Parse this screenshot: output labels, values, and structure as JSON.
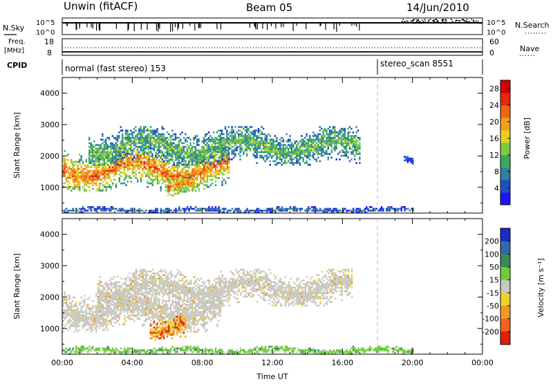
{
  "header": {
    "site": "Unwin (fitACF)",
    "beam": "Beam 05",
    "date": "14/Jun/2010"
  },
  "top_panels": {
    "nsky_label": "N.Sky",
    "nsearch_label": "N.Search",
    "nsky_ticks": [
      "10^5",
      "10^0"
    ],
    "nsearch_ticks": [
      "10^5",
      "10^0"
    ],
    "freq_label": "Freq.",
    "freq_unit": "[MHz]",
    "freq_ticks": [
      "18",
      "8"
    ],
    "nave_label": "Nave",
    "nave_ticks": [
      "60",
      "0"
    ],
    "cpid_label": "CPID",
    "cpid_segments": [
      {
        "text": "normal (fast stereo) 153",
        "start_hour": 0
      },
      {
        "text": "stereo_scan 8551",
        "start_hour": 18
      }
    ]
  },
  "chart_data": [
    {
      "type": "heatmap",
      "name": "power-panel",
      "xlabel": "",
      "ylabel": "Slant Range [km]",
      "xlim": [
        0,
        24
      ],
      "ylim": [
        180,
        4500
      ],
      "yticks": [
        1000,
        2000,
        3000,
        4000
      ],
      "colorbar": {
        "label": "Power [dB]",
        "ticks": [
          "4",
          "8",
          "12",
          "16",
          "20",
          "24",
          "28"
        ],
        "range": [
          0,
          30
        ],
        "colors": [
          "#1a14ff",
          "#1e4fbf",
          "#2e7fa0",
          "#3aa860",
          "#7ccc3c",
          "#e6d21e",
          "#f0a020",
          "#f06414",
          "#e02a0a",
          "#d40000"
        ]
      },
      "echo_regions": [
        {
          "hours": [
            0,
            9.5
          ],
          "range_km": [
            900,
            2300
          ],
          "level": "high"
        },
        {
          "hours": [
            1.5,
            17
          ],
          "range_km": [
            1700,
            2950
          ],
          "level": "mid"
        },
        {
          "hours": [
            0,
            20
          ],
          "range_km": [
            200,
            400
          ],
          "level": "low"
        },
        {
          "hours": [
            6,
            7.5
          ],
          "range_km": [
            700,
            1400
          ],
          "level": "high"
        },
        {
          "hours": [
            19.5,
            20
          ],
          "range_km": [
            1700,
            2000
          ],
          "level": "low"
        }
      ]
    },
    {
      "type": "heatmap",
      "name": "velocity-panel",
      "xlabel": "Time UT",
      "ylabel": "Slant Range [km]",
      "xlim": [
        0,
        24
      ],
      "ylim": [
        180,
        4500
      ],
      "xticks": [
        "00:00",
        "04:00",
        "08:00",
        "12:00",
        "16:00",
        "20:00",
        "00:00"
      ],
      "yticks": [
        1000,
        2000,
        3000,
        4000
      ],
      "colorbar": {
        "label": "Velocity [m s⁻¹]",
        "ticks": [
          "200",
          "100",
          "50",
          "15",
          "-15",
          "-50",
          "-100",
          "-200"
        ],
        "colors": [
          "#1a2cc8",
          "#2e6ab0",
          "#3a8a5a",
          "#6ccc3c",
          "#c8c8c0",
          "#f0d228",
          "#f09a1e",
          "#f0641e",
          "#e01e0a"
        ]
      },
      "echo_regions": [
        {
          "hours": [
            0,
            9
          ],
          "range_km": [
            900,
            2300
          ],
          "level": "ground"
        },
        {
          "hours": [
            2,
            16.5
          ],
          "range_km": [
            1700,
            2900
          ],
          "level": "ground"
        },
        {
          "hours": [
            5,
            7
          ],
          "range_km": [
            600,
            1400
          ],
          "level": "negative"
        },
        {
          "hours": [
            0,
            20
          ],
          "range_km": [
            200,
            450
          ],
          "level": "positive"
        }
      ]
    }
  ]
}
